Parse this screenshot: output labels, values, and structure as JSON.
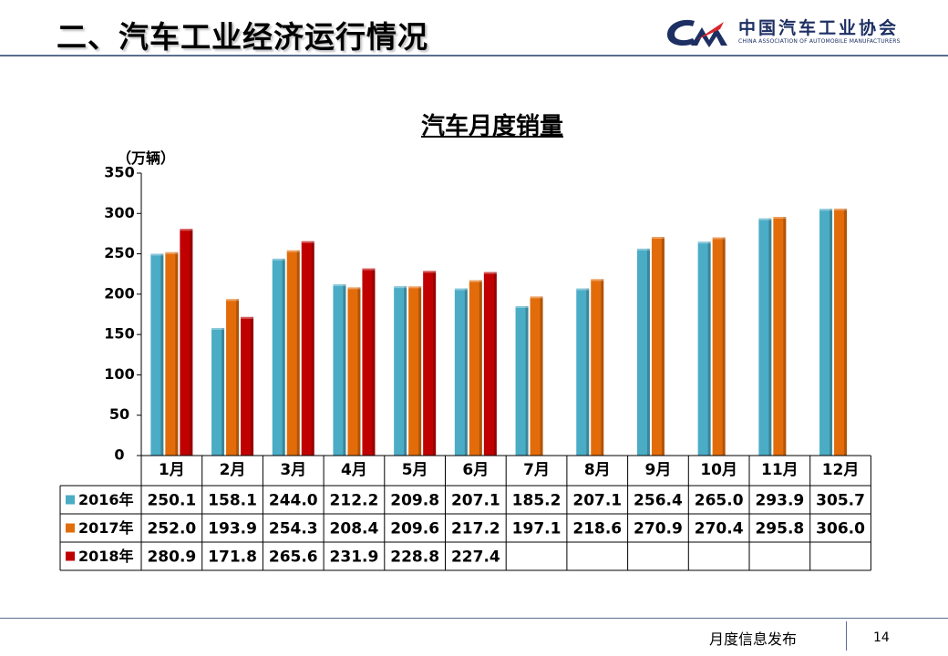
{
  "slide": {
    "title": "二、汽车工业经济运行情况",
    "footer": "月度信息发布",
    "page_number": "14"
  },
  "logo": {
    "chinese_name": "中国汽车工业协会",
    "english_name": "CHINA ASSOCIATION OF AUTOMOBILE MANUFACTURERS"
  },
  "chart_data": {
    "type": "bar",
    "title": "汽车月度销量",
    "ylabel": "（万辆）",
    "xlabel": "",
    "ylim": [
      0,
      350
    ],
    "yticks": [
      0,
      50,
      100,
      150,
      200,
      250,
      300,
      350
    ],
    "grid": false,
    "legend": "data-table",
    "categories": [
      "1月",
      "2月",
      "3月",
      "4月",
      "5月",
      "6月",
      "7月",
      "8月",
      "9月",
      "10月",
      "11月",
      "12月"
    ],
    "series": [
      {
        "name": "2016年",
        "color": "#4bacc6",
        "values": [
          250.1,
          158.1,
          244.0,
          212.2,
          209.8,
          207.1,
          185.2,
          207.1,
          256.4,
          265.0,
          293.9,
          305.7
        ],
        "labels": [
          "250.1",
          "158.1",
          "244.0",
          "212.2",
          "209.8",
          "207.1",
          "185.2",
          "207.1",
          "256.4",
          "265.0",
          "293.9",
          "305.7"
        ]
      },
      {
        "name": "2017年",
        "color": "#e36c0a",
        "values": [
          252.0,
          193.9,
          254.3,
          208.4,
          209.6,
          217.2,
          197.1,
          218.6,
          270.9,
          270.4,
          295.8,
          306.0
        ],
        "labels": [
          "252.0",
          "193.9",
          "254.3",
          "208.4",
          "209.6",
          "217.2",
          "197.1",
          "218.6",
          "270.9",
          "270.4",
          "295.8",
          "306.0"
        ]
      },
      {
        "name": "2018年",
        "color": "#c00000",
        "values": [
          280.9,
          171.8,
          265.6,
          231.9,
          228.8,
          227.4,
          null,
          null,
          null,
          null,
          null,
          null
        ],
        "labels": [
          "280.9",
          "171.8",
          "265.6",
          "231.9",
          "228.8",
          "227.4",
          "",
          "",
          "",
          "",
          "",
          ""
        ]
      }
    ]
  }
}
